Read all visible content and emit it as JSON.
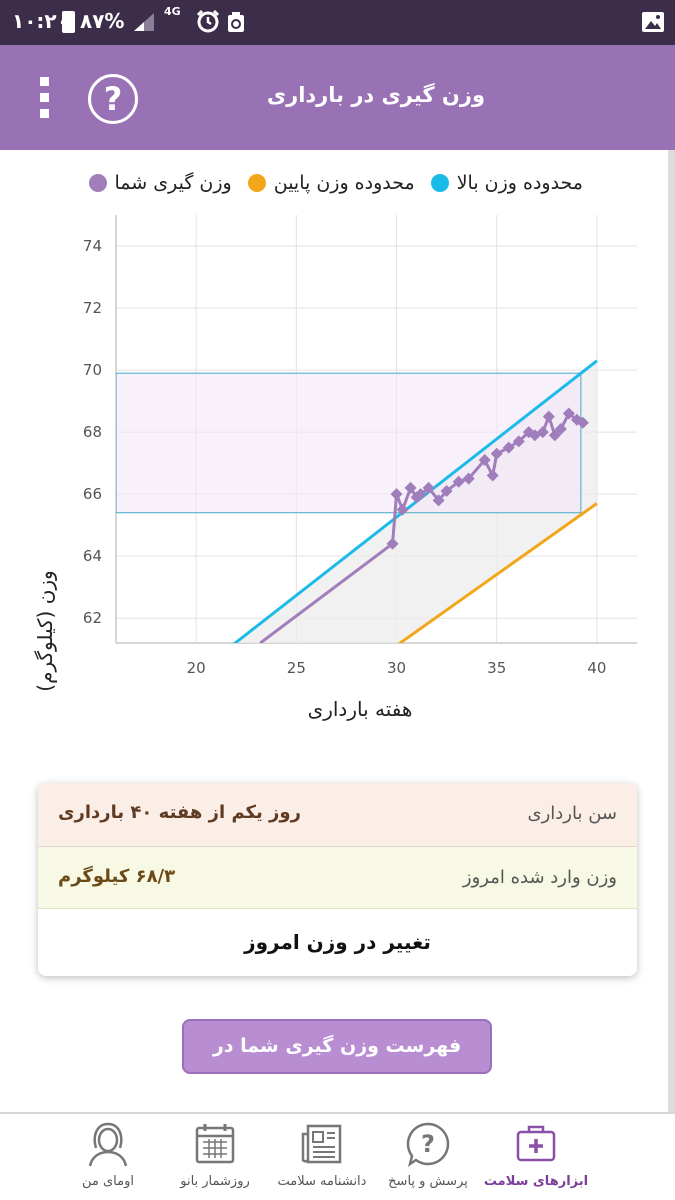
{
  "status_bar": {
    "time": "۱۰:۲۰",
    "battery": "۸۷%",
    "network": "4G",
    "icons": [
      "battery-icon",
      "signal-icon",
      "alarm-icon",
      "recycle-icon",
      "image-icon"
    ]
  },
  "app_bar": {
    "title": "وزن گیری در بارداری",
    "help_glyph": "?",
    "icons": [
      "more-vert-icon",
      "help-icon"
    ],
    "background": "#9872b4"
  },
  "legend": {
    "upper": "محدوده وزن بالا",
    "lower": "محدوده وزن پایین",
    "yours": "وزن گیری شما",
    "colors": {
      "upper": "#1bbbe9",
      "lower": "#f2a71b",
      "yours": "#a07dbb"
    }
  },
  "chart_data": {
    "type": "line",
    "xlabel": "هفته بارداری",
    "ylabel": "وزن (کیلوگرم)",
    "xlim": [
      16,
      42
    ],
    "ylim": [
      61.2,
      75
    ],
    "x_ticks": [
      20,
      25,
      30,
      35,
      40
    ],
    "y_ticks": [
      62,
      64,
      66,
      68,
      70,
      72,
      74
    ],
    "grid": true,
    "legend_placement": "top",
    "series": [
      {
        "name": "محدوده وزن بالا",
        "color": "#1bbbe9",
        "x": [
          16,
          40
        ],
        "y": [
          58.2,
          70.3
        ]
      },
      {
        "name": "محدوده وزن پایین",
        "color": "#f2a71b",
        "x": [
          16,
          40
        ],
        "y": [
          54.7,
          65.7
        ]
      },
      {
        "name": "وزن گیری شما",
        "color": "#a07dbb",
        "x": [
          23.2,
          29.8,
          30.0,
          30.3,
          30.7,
          31.0,
          31.2,
          31.6,
          32.1,
          32.5,
          33.1,
          33.6,
          34.4,
          34.8,
          35.0,
          35.6,
          36.1,
          36.6,
          36.9,
          37.3,
          37.6,
          37.9,
          38.2,
          38.6,
          39.0,
          39.3
        ],
        "y": [
          61.2,
          64.4,
          66.0,
          65.5,
          66.2,
          65.9,
          66.0,
          66.2,
          65.8,
          66.1,
          66.4,
          66.5,
          67.1,
          66.6,
          67.3,
          67.5,
          67.7,
          68.0,
          67.9,
          68.0,
          68.5,
          67.9,
          68.1,
          68.6,
          68.4,
          68.3
        ]
      }
    ],
    "current_range_box": {
      "x": [
        16,
        39.2
      ],
      "y": [
        65.4,
        69.9
      ]
    }
  },
  "info_card": {
    "age_label": "سن بارداری",
    "age_value": "روز یکم از هفته ۴۰ بارداری",
    "weight_label": "وزن وارد شده امروز",
    "weight_value": "۶۸/۳ کیلوگرم",
    "change_button": "تغییر در وزن امروز"
  },
  "list_button": "فهرست وزن گیری شما در بارداری",
  "bottom_nav": [
    {
      "label": "ابزارهای سلامت",
      "icon": "medical-kit-icon",
      "active": true
    },
    {
      "label": "پرسش و پاسخ",
      "icon": "question-bubble-icon",
      "active": false
    },
    {
      "label": "دانشنامه سلامت",
      "icon": "newspaper-icon",
      "active": false
    },
    {
      "label": "روزشمار بانو",
      "icon": "calendar-icon",
      "active": false
    },
    {
      "label": "اومای من",
      "icon": "woman-avatar-icon",
      "active": false
    }
  ]
}
